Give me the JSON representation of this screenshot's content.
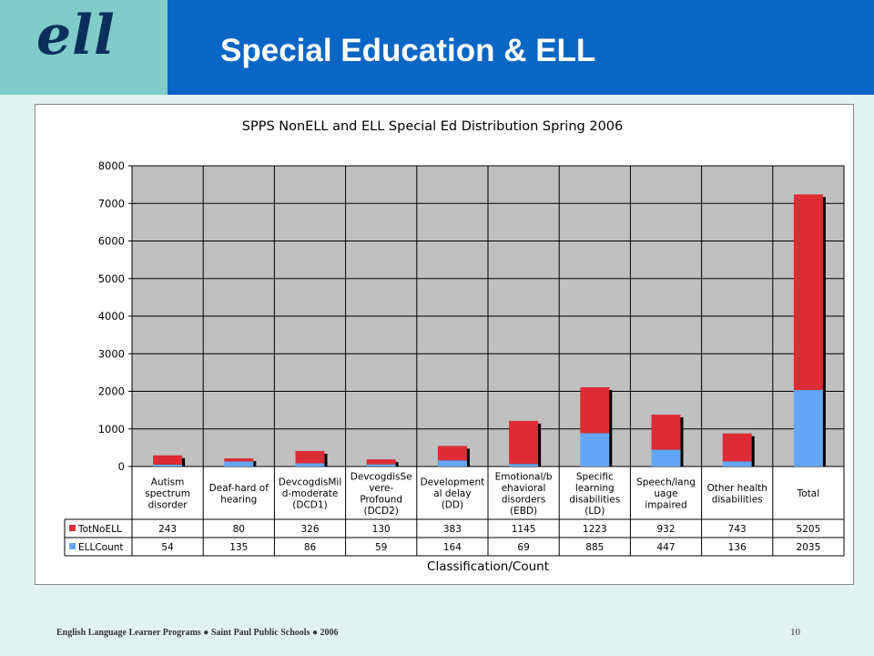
{
  "slide": {
    "logo": "ell",
    "title": "Special Education & ELL",
    "footer": "English Language Learner Programs ● Saint Paul Public Schools ● 2006",
    "page_number": "10"
  },
  "colors": {
    "header_band": "#0a66c4",
    "logo_box": "#7fccc8",
    "plot_bg": "#c0c0c0",
    "series_totnoell": "#dd2c36",
    "series_ellcount": "#62a6f5"
  },
  "chart_data": {
    "type": "bar",
    "stacked": true,
    "title": "SPPS NonELL and ELL Special Ed Distribution Spring 2006",
    "xlabel": "Classification/Count",
    "ylabel": "",
    "ylim": [
      0,
      8000
    ],
    "yticks": [
      0,
      1000,
      2000,
      3000,
      4000,
      5000,
      6000,
      7000,
      8000
    ],
    "grid": true,
    "legend": "data-table-left",
    "categories": [
      [
        "Autism",
        "spectrum",
        "disorder"
      ],
      [
        "Deaf-hard of",
        "hearing"
      ],
      [
        "DevcogdisMil",
        "d-moderate",
        "(DCD1)"
      ],
      [
        "DevcogdisSe",
        "vere-",
        "Profound",
        "(DCD2)"
      ],
      [
        "Development",
        "al delay",
        "(DD)"
      ],
      [
        "Emotional/b",
        "ehavioral",
        "disorders",
        "(EBD)"
      ],
      [
        "Specific",
        "learning",
        "disabilities",
        "(LD)"
      ],
      [
        "Speech/lang",
        "uage",
        "impaired"
      ],
      [
        "Other health",
        "disabilities"
      ],
      [
        "Total"
      ]
    ],
    "series": [
      {
        "name": "TotNoELL",
        "color": "#dd2c36",
        "values": [
          243,
          80,
          326,
          130,
          383,
          1145,
          1223,
          932,
          743,
          5205
        ]
      },
      {
        "name": "ELLCount",
        "color": "#62a6f5",
        "values": [
          54,
          135,
          86,
          59,
          164,
          69,
          885,
          447,
          136,
          2035
        ]
      }
    ]
  }
}
